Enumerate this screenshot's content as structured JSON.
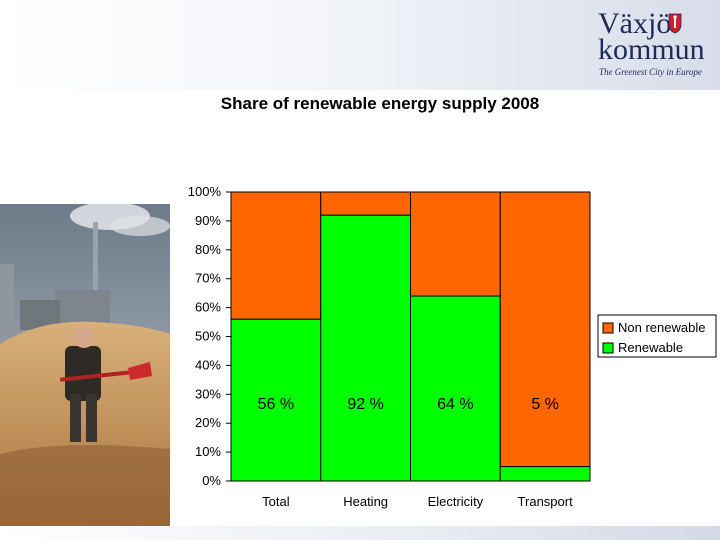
{
  "header": {
    "logo_line1": "Växjö",
    "logo_line2": "kommun",
    "tagline": "The Greenest City in Europe"
  },
  "colors": {
    "renewable": "#00ff00",
    "non_renewable": "#ff6600"
  },
  "chart_data": {
    "type": "bar",
    "stacked": true,
    "title": "Share of renewable energy supply 2008",
    "categories": [
      "Total",
      "Heating",
      "Electricity",
      "Transport"
    ],
    "series": [
      {
        "name": "Renewable",
        "values": [
          56,
          92,
          64,
          5
        ]
      },
      {
        "name": "Non renewable",
        "values": [
          44,
          8,
          36,
          95
        ]
      }
    ],
    "data_labels": [
      "56 %",
      "92 %",
      "64 %",
      "5 %"
    ],
    "yticks": [
      "0%",
      "10%",
      "20%",
      "30%",
      "40%",
      "50%",
      "60%",
      "70%",
      "80%",
      "90%",
      "100%"
    ],
    "ylim": [
      0,
      100
    ],
    "xlabel": "",
    "ylabel": "",
    "legend": [
      "Non renewable",
      "Renewable"
    ],
    "legend_position": "right",
    "grid": false
  }
}
